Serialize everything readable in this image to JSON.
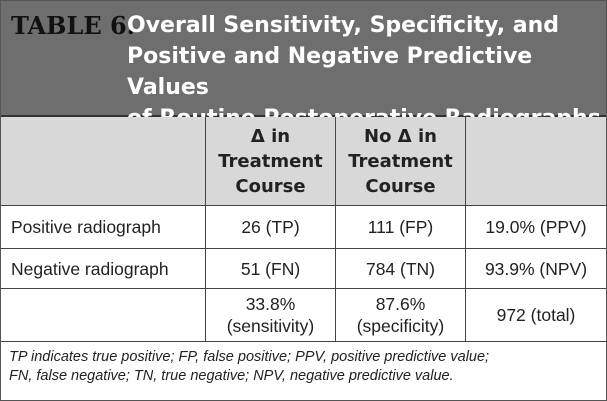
{
  "table": {
    "label": "TABLE 6.",
    "title": [
      "Overall Sensitivity, Specificity, and",
      "Positive and Negative Predictive Values",
      "of Routine Postoperative Radiographs"
    ],
    "headers": [
      [
        "Δ in",
        "Treatment",
        "Course"
      ],
      [
        "No Δ in",
        "Treatment",
        "Course"
      ]
    ],
    "rows": [
      [
        [
          "Positive radiograph"
        ],
        [
          "26 (TP)"
        ],
        [
          "111 (FP)"
        ],
        [
          "19.0% (PPV)"
        ]
      ],
      [
        [
          "Negative radiograph"
        ],
        [
          "51 (FN)"
        ],
        [
          "784 (TN)"
        ],
        [
          "93.9% (NPV)"
        ]
      ],
      [
        [],
        [
          "33.8%",
          "(sensitivity)"
        ],
        [
          "87.6%",
          "(specificity)"
        ],
        [
          "972 (total)"
        ]
      ]
    ],
    "footnote": [
      "TP indicates true positive; FP, false positive; PPV, positive predictive value;",
      "FN, false negative; TN, true negative; NPV, negative predictive value."
    ]
  }
}
